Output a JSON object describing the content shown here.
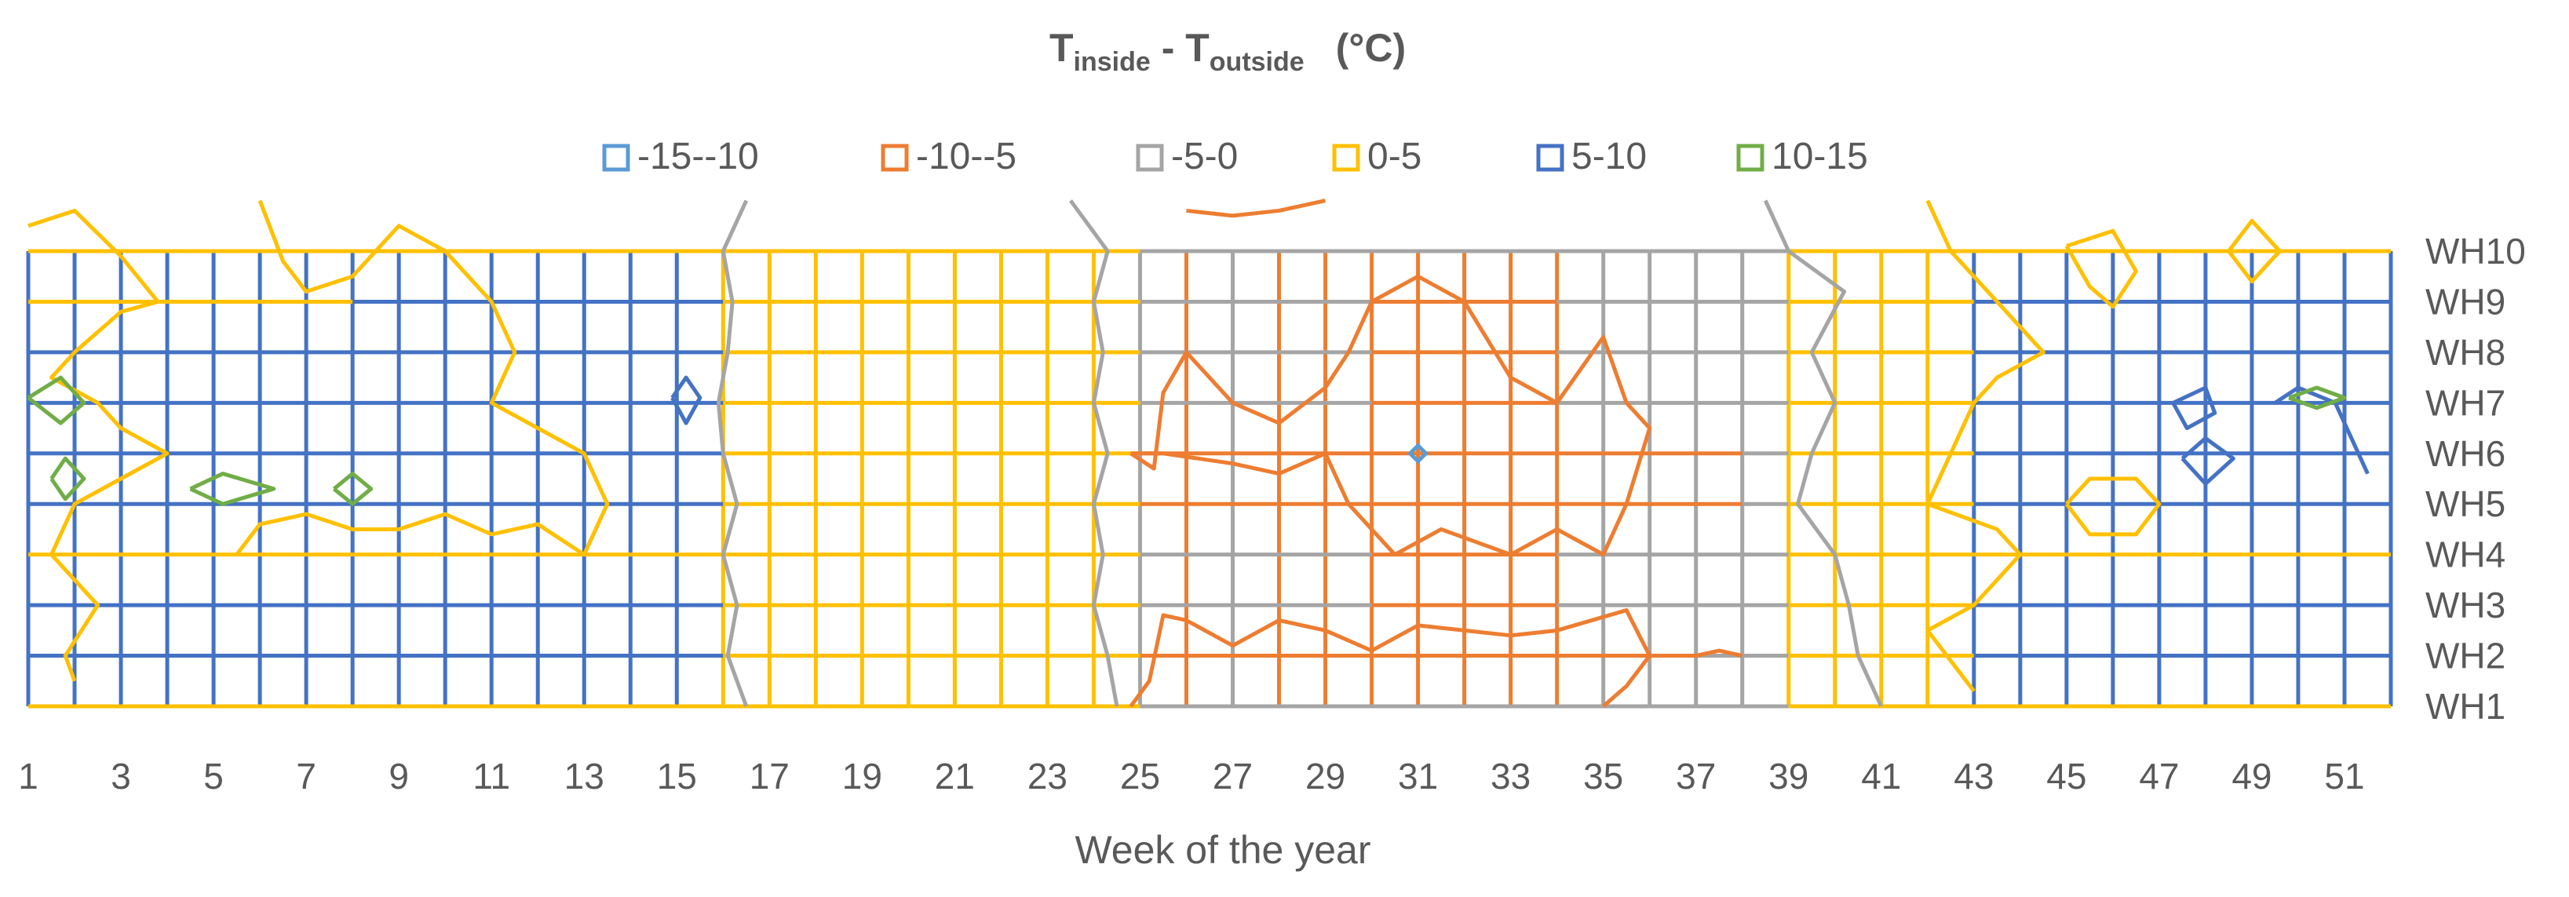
{
  "chart_data": {
    "type": "contour",
    "title": {
      "t1": "T",
      "sub1": "inside",
      "dash": " - ",
      "t2": "T",
      "sub2": "outside",
      "unit": "(°C)"
    },
    "xlabel": "Week of the year",
    "x_ticks": [
      "1",
      "3",
      "5",
      "7",
      "9",
      "11",
      "13",
      "15",
      "17",
      "19",
      "21",
      "23",
      "25",
      "27",
      "29",
      "31",
      "33",
      "35",
      "37",
      "39",
      "41",
      "43",
      "45",
      "47",
      "49",
      "51"
    ],
    "y_categories": [
      "WH1",
      "WH2",
      "WH3",
      "WH4",
      "WH5",
      "WH6",
      "WH7",
      "WH8",
      "WH9",
      "WH10"
    ],
    "x_range": [
      1,
      52
    ],
    "legend": {
      "position": "top",
      "items": [
        {
          "label": "-15--10",
          "color": "#5b9bd5"
        },
        {
          "label": "-10--5",
          "color": "#ed7d31"
        },
        {
          "label": "-5-0",
          "color": "#a5a5a5"
        },
        {
          "label": "0-5",
          "color": "#ffc000"
        },
        {
          "label": "5-10",
          "color": "#4472c4"
        },
        {
          "label": "10-15",
          "color": "#70ad47"
        }
      ]
    },
    "grid": true,
    "bands_by_week": [
      {
        "weeks": [
          1,
          15
        ],
        "band": "5-10",
        "note_level": "dominant"
      },
      {
        "weeks": [
          16,
          24
        ],
        "band": "0-5"
      },
      {
        "weeks": [
          25,
          38
        ],
        "band": "-5-0"
      },
      {
        "weeks": [
          39,
          42
        ],
        "band": "0-5"
      },
      {
        "weeks": [
          43,
          52
        ],
        "band": "5-10"
      }
    ],
    "orange_region_weeks": [
      25,
      37
    ],
    "cold_spot": {
      "week": 31,
      "wh": "WH6",
      "band": "-15--10"
    }
  }
}
